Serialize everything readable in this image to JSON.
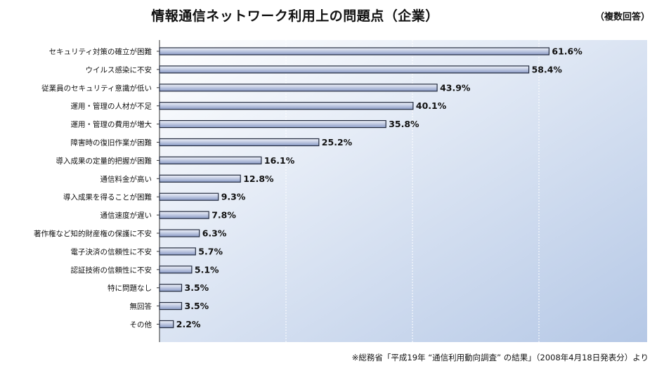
{
  "header": {
    "title": "情報通信ネットワーク利用上の問題点（企業）",
    "subtitle": "（複数回答）"
  },
  "footer": {
    "source": "※総務省「平成19年 “通信利用動向調査” の結果」（2008年4月18日発表分）より"
  },
  "colors": {
    "bar_top": "#f1f4fb",
    "bar_bottom": "#8a9bc6",
    "bar_border": "#222a3e",
    "plot_bg_start": "#ffffff",
    "plot_bg_end": "#b5c8e6",
    "gridline": "#ffffff"
  },
  "chart_data": {
    "type": "bar",
    "orientation": "horizontal",
    "categories": [
      "セキュリティ対策の確立が困難",
      "ウイルス感染に不安",
      "従業員のセキュリティ意識が低い",
      "運用・管理の人材が不足",
      "運用・管理の費用が増大",
      "障害時の復旧作業が困難",
      "導入成果の定量的把握が困難",
      "通信料金が高い",
      "導入成果を得ることが困難",
      "通信速度が遅い",
      "著作権など知的財産権の保護に不安",
      "電子決済の信頼性に不安",
      "認証技術の信頼性に不安",
      "特に問題なし",
      "無回答",
      "その他"
    ],
    "values": [
      61.6,
      58.4,
      43.9,
      40.1,
      35.8,
      25.2,
      16.1,
      12.8,
      9.3,
      7.8,
      6.3,
      5.7,
      5.1,
      3.5,
      3.5,
      2.2
    ],
    "value_labels": [
      "61.6%",
      "58.4%",
      "43.9%",
      "40.1%",
      "35.8%",
      "25.2%",
      "16.1%",
      "12.8%",
      "9.3%",
      "7.8%",
      "6.3%",
      "5.7%",
      "5.1%",
      "3.5%",
      "3.5%",
      "2.2%"
    ],
    "xlim": [
      0,
      100
    ],
    "gridlines": [
      20,
      40,
      60,
      80
    ],
    "title": "情報通信ネットワーク利用上の問題点（企業）",
    "xlabel": "",
    "ylabel": ""
  }
}
